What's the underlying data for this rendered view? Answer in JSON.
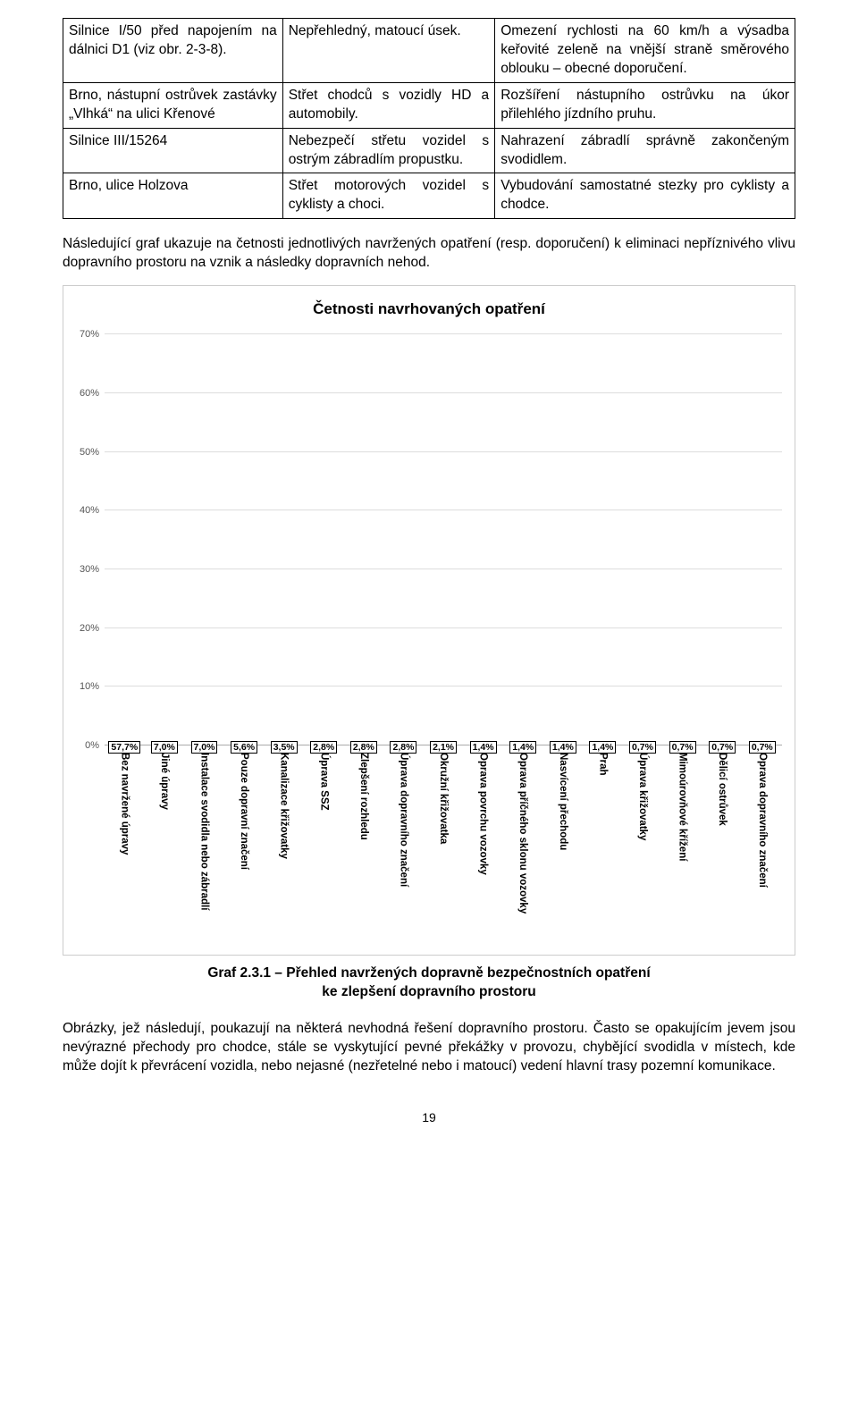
{
  "table": {
    "rows": [
      {
        "c1": "Silnice I/50 před napojením na dálnici D1 (viz obr. 2-3-8).",
        "c2": "Nepřehledný, matoucí úsek.",
        "c3": "Omezení rychlosti na 60 km/h a výsadba keřovité zeleně na vnější straně směrového oblouku – obecné doporučení."
      },
      {
        "c1": "Brno, nástupní ostrůvek zastávky „Vlhká“ na ulici Křenové",
        "c2": "Střet chodců s vozidly HD a automobily.",
        "c3": "Rozšíření nástupního ostrůvku na úkor přilehlého jízdního pruhu."
      },
      {
        "c1": "Silnice III/15264",
        "c2": "Nebezpečí střetu vozidel s ostrým zábradlím propustku.",
        "c3": "Nahrazení zábradlí správně zakončeným svodidlem."
      },
      {
        "c1": "Brno, ulice Holzova",
        "c2": "Střet motorových vozidel s cyklisty a choci.",
        "c3": "Vybudování samostatné stezky pro cyklisty a chodce."
      }
    ]
  },
  "para1": "Následující graf ukazuje na četnosti jednotlivých navržených opatření (resp. doporučení) k eliminaci nepříznivého vlivu dopravního prostoru na vznik a následky dopravních nehod.",
  "chart": {
    "title": "Četnosti navrhovaných opatření",
    "y_max_pct": 70,
    "y_ticks": [
      0,
      10,
      20,
      30,
      40,
      50,
      60,
      70
    ],
    "bar_color": "#5b6fa4",
    "grid_color": "#dddddd",
    "series": [
      {
        "label": "Bez navržené úpravy",
        "value": 57.7
      },
      {
        "label": "Jiné úpravy",
        "value": 7.0
      },
      {
        "label": "Instalace svodidla nebo zábradlí",
        "value": 7.0
      },
      {
        "label": "Pouze dopravní značení",
        "value": 5.6
      },
      {
        "label": "Kanalizace křižovatky",
        "value": 3.5
      },
      {
        "label": "Úprava SSZ",
        "value": 2.8
      },
      {
        "label": "Zlepšení rozhledu",
        "value": 2.8
      },
      {
        "label": "Úprava dopravního značení",
        "value": 2.8
      },
      {
        "label": "Okružní křižovatka",
        "value": 2.1
      },
      {
        "label": "Oprava povrchu vozovky",
        "value": 1.4
      },
      {
        "label": "Oprava příčného sklonu vozovky",
        "value": 1.4
      },
      {
        "label": "Nasvícení přechodu",
        "value": 1.4
      },
      {
        "label": "Prah",
        "value": 1.4
      },
      {
        "label": "Úprava křižovatky",
        "value": 0.7
      },
      {
        "label": "Mimoúrovňové křížení",
        "value": 0.7
      },
      {
        "label": "Dělicí ostrůvek",
        "value": 0.7
      },
      {
        "label": "Oprava dopravního značení",
        "value": 0.7
      }
    ]
  },
  "caption": {
    "line1": "Graf 2.3.1 – Přehled navržených dopravně bezpečnostních opatření",
    "line2": "ke zlepšení dopravního prostoru"
  },
  "para2": "Obrázky, jež následují, poukazují na některá nevhodná řešení dopravního prostoru. Často se opakujícím jevem jsou nevýrazné přechody pro chodce, stále se vyskytující pevné překážky v provozu, chybějící svodidla v místech, kde může dojít k převrácení vozidla, nebo nejasné (nezřetelné nebo i matoucí) vedení hlavní trasy pozemní komunikace.",
  "page_number": "19"
}
